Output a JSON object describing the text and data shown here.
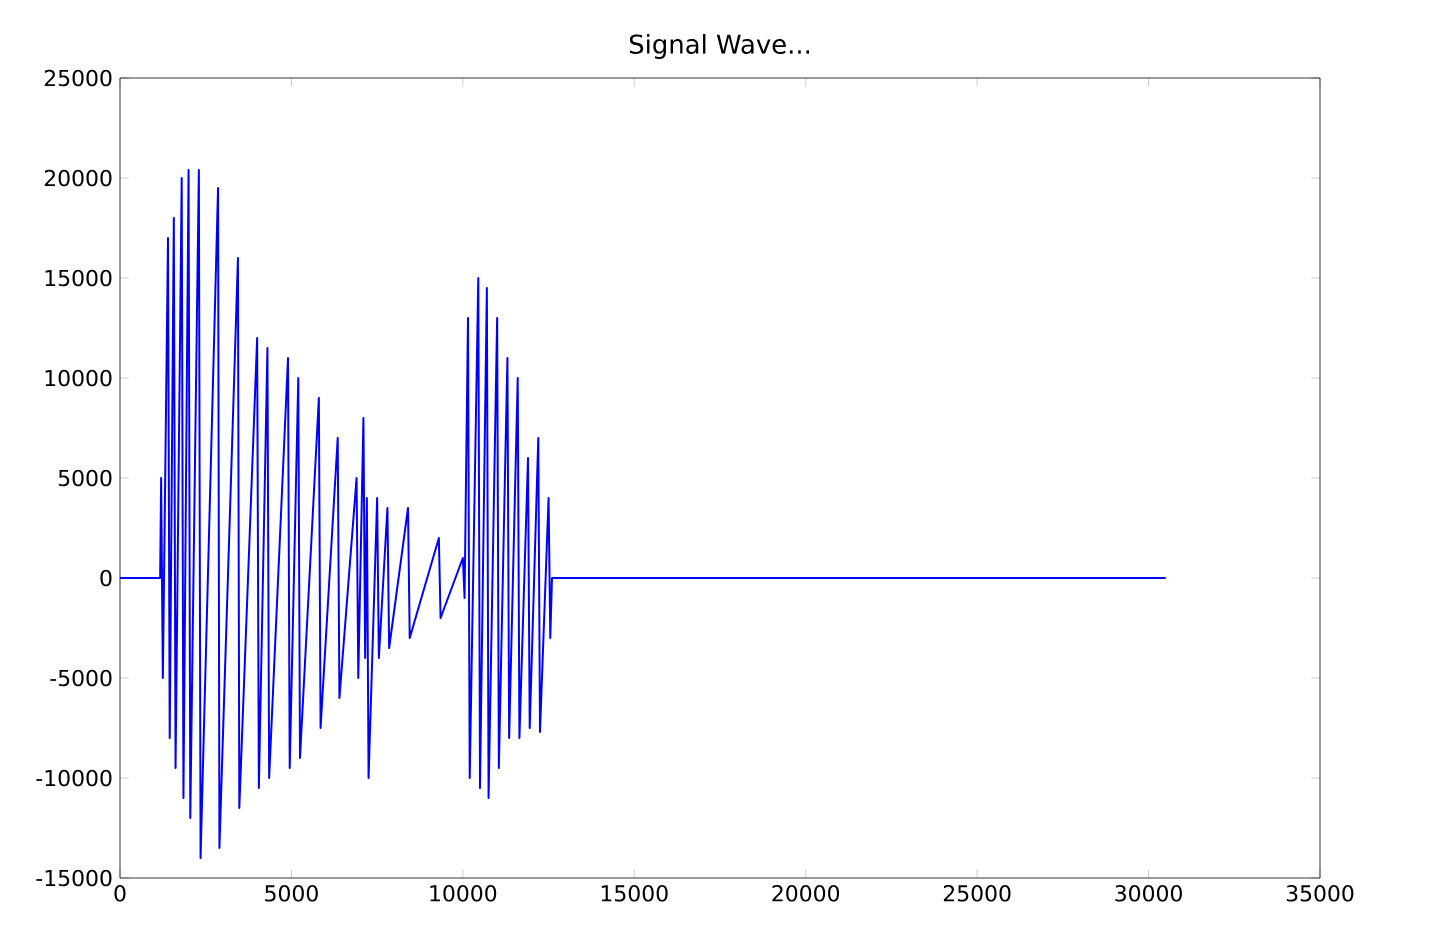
{
  "chart_data": {
    "type": "line",
    "title": "Signal Wave...",
    "x": [
      0,
      1170,
      1200,
      1250,
      1400,
      1450,
      1570,
      1620,
      1800,
      1850,
      2000,
      2050,
      2300,
      2350,
      2860,
      2900,
      3440,
      3480,
      4000,
      4050,
      4300,
      4350,
      4900,
      4950,
      5200,
      5250,
      5800,
      5850,
      6350,
      6400,
      6900,
      6950,
      7100,
      7150,
      7200,
      7250,
      7500,
      7550,
      7800,
      7850,
      8400,
      8450,
      9300,
      9350,
      10000,
      10050,
      10150,
      10200,
      10450,
      10500,
      10700,
      10750,
      11000,
      11050,
      11300,
      11350,
      11600,
      11650,
      11900,
      11950,
      12200,
      12250,
      12500,
      12550,
      12600,
      30500
    ],
    "series": [
      {
        "color": "#0000ff",
        "values": [
          0,
          0,
          5000,
          -5000,
          17000,
          -8000,
          18000,
          -9500,
          20000,
          -11000,
          20400,
          -12000,
          20400,
          -14000,
          19500,
          -13500,
          16000,
          -11500,
          12000,
          -10500,
          11500,
          -10000,
          11000,
          -9500,
          10000,
          -9000,
          9000,
          -7500,
          7000,
          -6000,
          5000,
          -5000,
          8000,
          -4000,
          4000,
          -10000,
          4000,
          -4000,
          3500,
          -3500,
          3500,
          -3000,
          2000,
          -2000,
          1000,
          -1000,
          13000,
          -10000,
          15000,
          -10500,
          14500,
          -11000,
          13000,
          -9500,
          11000,
          -8000,
          10000,
          -8000,
          6000,
          -7500,
          7000,
          -7700,
          4000,
          -3000,
          0,
          0
        ]
      }
    ],
    "xlim": [
      0,
      35000
    ],
    "xticks": [
      0,
      5000,
      10000,
      15000,
      20000,
      25000,
      30000,
      35000
    ],
    "ylim": [
      -15000,
      25000
    ],
    "yticks": [
      -15000,
      -10000,
      -5000,
      0,
      5000,
      10000,
      15000,
      20000,
      25000
    ]
  }
}
